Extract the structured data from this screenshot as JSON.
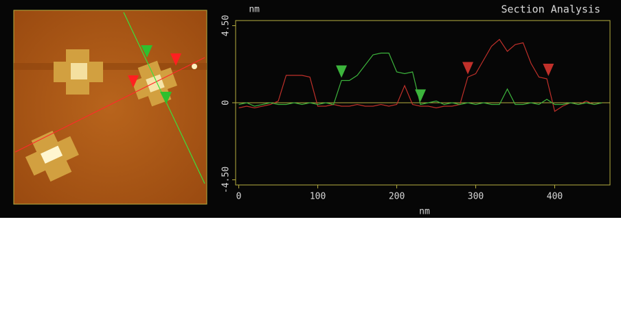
{
  "chart_data": {
    "type": "line",
    "title": "Section Analysis",
    "ylabel": "nm",
    "xlabel": "nm",
    "xlim": [
      -4,
      470
    ],
    "xticks": [
      0,
      100,
      200,
      300,
      400
    ],
    "ylim": [
      -4.8,
      4.8
    ],
    "yticks": [
      {
        "value": -4.5,
        "label": "-4.50"
      },
      0,
      {
        "value": 4.5,
        "label": "4.50"
      }
    ],
    "x": [
      0,
      10,
      20,
      30,
      40,
      50,
      60,
      70,
      80,
      90,
      100,
      110,
      120,
      130,
      140,
      150,
      160,
      170,
      180,
      190,
      200,
      210,
      220,
      230,
      240,
      250,
      260,
      270,
      280,
      290,
      300,
      310,
      320,
      330,
      340,
      350,
      360,
      370,
      380,
      390,
      400,
      410,
      420,
      430,
      440,
      450,
      460
    ],
    "series": [
      {
        "color": "#c0302a",
        "cursors": [
          290,
          392
        ],
        "values": [
          -0.3,
          -0.2,
          -0.3,
          -0.2,
          -0.1,
          0.1,
          1.6,
          1.6,
          1.6,
          1.5,
          -0.2,
          -0.2,
          -0.1,
          -0.2,
          -0.2,
          -0.1,
          -0.2,
          -0.2,
          -0.1,
          -0.2,
          -0.1,
          1.0,
          -0.1,
          -0.2,
          -0.2,
          -0.3,
          -0.2,
          -0.2,
          -0.1,
          1.5,
          1.7,
          2.5,
          3.3,
          3.7,
          3.0,
          3.4,
          3.5,
          2.3,
          1.5,
          1.4,
          -0.5,
          -0.2,
          0,
          -0.1,
          0.1,
          -0.1,
          0
        ]
      },
      {
        "color": "#3cb43c",
        "cursors": [
          130,
          230
        ],
        "values": [
          -0.1,
          0,
          -0.2,
          -0.1,
          0,
          -0.1,
          -0.1,
          0,
          -0.1,
          0,
          -0.1,
          0,
          -0.1,
          1.3,
          1.3,
          1.6,
          2.2,
          2.8,
          2.9,
          2.9,
          1.8,
          1.7,
          1.8,
          -0.1,
          0,
          0.1,
          -0.1,
          0,
          -0.1,
          0,
          -0.1,
          0,
          -0.1,
          -0.1,
          0.8,
          -0.1,
          -0.1,
          0,
          -0.1,
          0.2,
          -0.1,
          -0.1,
          0,
          -0.1,
          0,
          -0.1,
          0
        ]
      }
    ]
  }
}
